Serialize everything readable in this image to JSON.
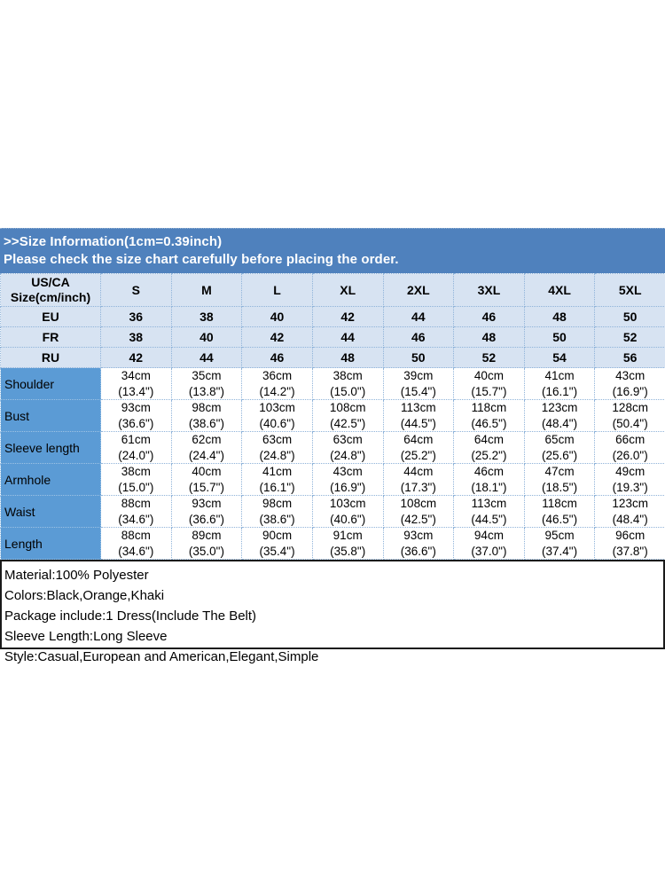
{
  "colors": {
    "banner_blue": "#4f81bd",
    "light_cell_blue": "#d7e3f2",
    "row_label_blue": "#5b9bd5",
    "grid_dotted_blue": "#8fb3d9",
    "banner_text": "#ffffff",
    "info_border": "#1a1a1a"
  },
  "banner": {
    "title": ">>Size Information(1cm=0.39inch)",
    "subtitle": "Please check the size chart carefully before placing the order."
  },
  "size_table": {
    "corner_header": "US/CA\nSize(cm/inch)",
    "size_headers": [
      "S",
      "M",
      "L",
      "XL",
      "2XL",
      "3XL",
      "4XL",
      "5XL"
    ],
    "region_rows": [
      {
        "label": "EU",
        "values": [
          "36",
          "38",
          "40",
          "42",
          "44",
          "46",
          "48",
          "50"
        ]
      },
      {
        "label": "FR",
        "values": [
          "38",
          "40",
          "42",
          "44",
          "46",
          "48",
          "50",
          "52"
        ]
      },
      {
        "label": "RU",
        "values": [
          "42",
          "44",
          "46",
          "48",
          "50",
          "52",
          "54",
          "56"
        ]
      }
    ],
    "measurement_rows": [
      {
        "label": "Shoulder",
        "values": [
          "34cm\n(13.4\")",
          "35cm\n(13.8\")",
          "36cm\n(14.2\")",
          "38cm\n(15.0\")",
          "39cm\n(15.4\")",
          "40cm\n(15.7\")",
          "41cm\n(16.1\")",
          "43cm\n(16.9\")"
        ]
      },
      {
        "label": "Bust",
        "values": [
          "93cm\n(36.6\")",
          "98cm\n(38.6\")",
          "103cm\n(40.6\")",
          "108cm\n(42.5\")",
          "113cm\n(44.5\")",
          "118cm\n(46.5\")",
          "123cm\n(48.4\")",
          "128cm\n(50.4\")"
        ]
      },
      {
        "label": "Sleeve length",
        "values": [
          "61cm\n(24.0\")",
          "62cm\n(24.4\")",
          "63cm\n(24.8\")",
          "63cm\n(24.8\")",
          "64cm\n(25.2\")",
          "64cm\n(25.2\")",
          "65cm\n(25.6\")",
          "66cm\n(26.0\")"
        ]
      },
      {
        "label": "Armhole",
        "values": [
          "38cm\n(15.0\")",
          "40cm\n(15.7\")",
          "41cm\n(16.1\")",
          "43cm\n(16.9\")",
          "44cm\n(17.3\")",
          "46cm\n(18.1\")",
          "47cm\n(18.5\")",
          "49cm\n(19.3\")"
        ]
      },
      {
        "label": "Waist",
        "values": [
          "88cm\n(34.6\")",
          "93cm\n(36.6\")",
          "98cm\n(38.6\")",
          "103cm\n(40.6\")",
          "108cm\n(42.5\")",
          "113cm\n(44.5\")",
          "118cm\n(46.5\")",
          "123cm\n(48.4\")"
        ]
      },
      {
        "label": "Length",
        "values": [
          "88cm\n(34.6\")",
          "89cm\n(35.0\")",
          "90cm\n(35.4\")",
          "91cm\n(35.8\")",
          "93cm\n(36.6\")",
          "94cm\n(37.0\")",
          "95cm\n(37.4\")",
          "96cm\n(37.8\")"
        ]
      }
    ]
  },
  "product_info": {
    "lines": [
      "Material:100% Polyester",
      "Colors:Black,Orange,Khaki",
      "Package include:1 Dress(Include The Belt)",
      "Sleeve Length:Long Sleeve",
      "Style:Casual,European and American,Elegant,Simple"
    ]
  }
}
